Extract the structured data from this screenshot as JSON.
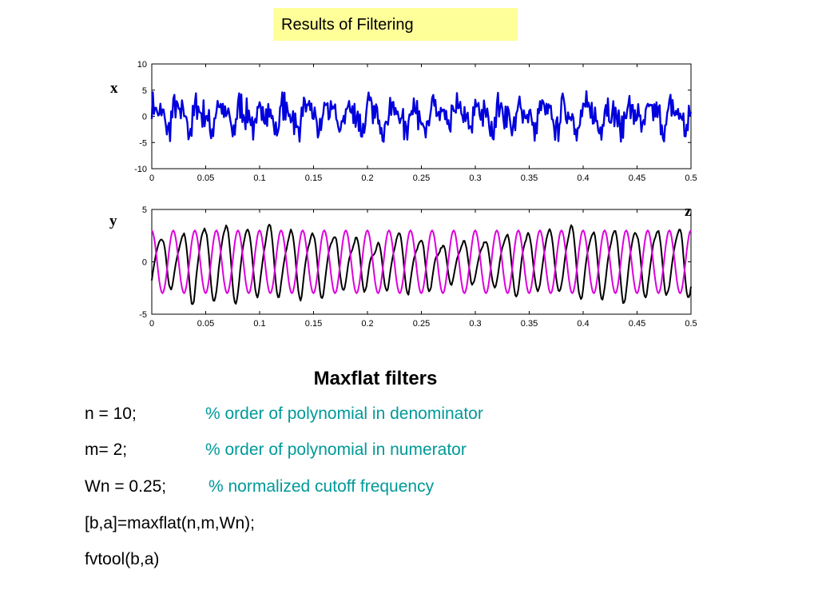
{
  "header": {
    "title": "Results of Filtering"
  },
  "labels": {
    "top": "x",
    "bottom": "y",
    "right": "z"
  },
  "section": {
    "title": "Maxflat filters",
    "lines": [
      {
        "code": "n = 10;",
        "comment": "% order of polynomial in denominator"
      },
      {
        "code": "m= 2;",
        "comment": "% order of polynomial in numerator"
      },
      {
        "code": "Wn = 0.25;",
        "comment": "% normalized cutoff frequency"
      },
      {
        "code": "[b,a]=maxflat(n,m,Wn);",
        "comment": ""
      },
      {
        "code": "fvtool(b,a)",
        "comment": ""
      }
    ]
  },
  "chart_data": [
    {
      "type": "line",
      "title": "",
      "xlabel": "",
      "ylabel": "",
      "xlim": [
        0,
        0.5
      ],
      "ylim": [
        -10,
        10
      ],
      "xticks": [
        "0",
        "0.05",
        "0.1",
        "0.15",
        "0.2",
        "0.25",
        "0.3",
        "0.35",
        "0.4",
        "0.45",
        "0.5"
      ],
      "yticks": [
        "10",
        "5",
        "0",
        "-5",
        "-10"
      ],
      "series": [
        {
          "color": "#0000dd",
          "description": "noisy signal (approx)",
          "model": "sum of sinusoids 50/100/400 Hz + noise",
          "samples": 500
        }
      ],
      "grid": false
    },
    {
      "type": "line",
      "title": "",
      "xlabel": "",
      "ylabel": "",
      "xlim": [
        0,
        0.5
      ],
      "ylim": [
        -5,
        5
      ],
      "xticks": [
        "0",
        "0.05",
        "0.1",
        "0.15",
        "0.2",
        "0.25",
        "0.3",
        "0.35",
        "0.4",
        "0.45",
        "0.5"
      ],
      "yticks": [
        "5",
        "0",
        "-5"
      ],
      "series": [
        {
          "color": "#000000",
          "description": "filtered output (approx)",
          "model": "low-pass filtered signal",
          "samples": 500
        },
        {
          "color": "#dd00dd",
          "description": "reference sinusoid (approx)",
          "amplitude": 3,
          "frequency_hz": 50,
          "samples": 500
        }
      ],
      "grid": false
    }
  ],
  "colors": {
    "title_bg": "#ffff99",
    "comment": "#009999",
    "series_blue": "#0000dd",
    "series_black": "#000000",
    "series_magenta": "#dd00dd"
  }
}
